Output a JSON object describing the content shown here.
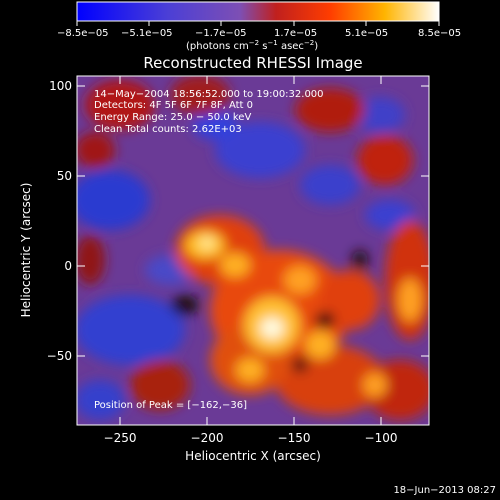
{
  "colorbar": {
    "tick_labels": [
      "−8.5e−05",
      "−5.1e−05",
      "−1.7e−05",
      "1.7e−05",
      "5.1e−05",
      "8.5e−05"
    ],
    "unit_prefix": "(photons cm",
    "unit_exp1": "−2",
    "unit_mid": " s",
    "unit_exp2": "−1",
    "unit_mid2": " asec",
    "unit_exp3": "−2",
    "unit_suffix": ")"
  },
  "title": "Reconstructed RHESSI Image",
  "annotations": {
    "line1": "14−May−2004 18:56:52.000 to 19:00:32.000",
    "line2": "Detectors: 4F 5F 6F 7F 8F, Att 0",
    "line3": "Energy Range: 25.0 − 50.0 keV",
    "line4": "Clean    Total counts: 2.62E+03",
    "peak": "Position of Peak = [−162,−36]"
  },
  "axes": {
    "xlabel": "Heliocentric X (arcsec)",
    "ylabel": "Heliocentric Y (arcsec)",
    "xticks": [
      "−250",
      "−200",
      "−150",
      "−100"
    ],
    "yticks": [
      "100",
      "50",
      "0",
      "−50"
    ]
  },
  "timestamp": "18−Jun−2013 08:27"
}
